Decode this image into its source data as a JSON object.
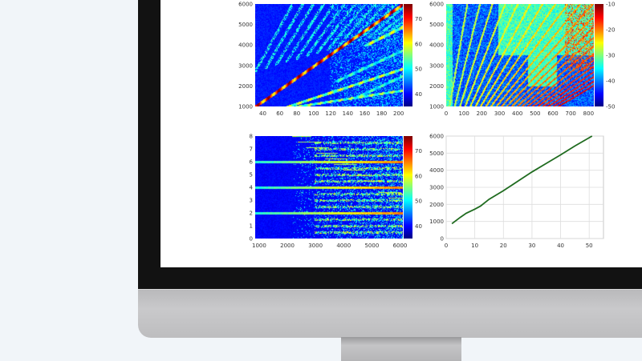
{
  "colors": {
    "background": "#f1f5f9",
    "bezel": "#121212",
    "screen": "#ffffff",
    "line": "#1f6b1f",
    "colormap": "jet"
  },
  "chart_data": [
    {
      "type": "heatmap",
      "xlim": [
        31,
        205
      ],
      "ylim": [
        1000,
        6000
      ],
      "xticks": [
        40,
        60,
        80,
        100,
        120,
        140,
        160,
        180,
        200
      ],
      "yticks": [
        1000,
        2000,
        3000,
        4000,
        5000,
        6000
      ],
      "colorbar": {
        "range": [
          35,
          76
        ],
        "ticks": [
          40,
          50,
          60,
          70
        ]
      }
    },
    {
      "type": "heatmap",
      "xlim": [
        0,
        830
      ],
      "ylim": [
        1000,
        6000
      ],
      "xticks": [
        0,
        100,
        200,
        300,
        400,
        500,
        600,
        700,
        800
      ],
      "yticks": [
        1000,
        2000,
        3000,
        4000,
        5000,
        6000
      ],
      "colorbar": {
        "range": [
          -50,
          -10
        ],
        "ticks": [
          -10,
          -20,
          -30,
          -40,
          -50
        ]
      }
    },
    {
      "type": "heatmap",
      "xlim": [
        860,
        6100
      ],
      "ylim": [
        0,
        8
      ],
      "xticks": [
        1000,
        2000,
        3000,
        4000,
        5000,
        6000
      ],
      "yticks": [
        0,
        1,
        2,
        3,
        4,
        5,
        6,
        7,
        8
      ],
      "colorbar": {
        "range": [
          35,
          76
        ],
        "ticks": [
          40,
          50,
          60,
          70
        ]
      }
    },
    {
      "type": "line",
      "xlim": [
        0,
        55
      ],
      "ylim": [
        0,
        6000
      ],
      "grid": true,
      "xticks": [
        0,
        10,
        20,
        30,
        40,
        50
      ],
      "yticks": [
        0,
        1000,
        2000,
        3000,
        4000,
        5000,
        6000
      ],
      "series": [
        {
          "x": [
            2,
            5,
            7,
            10,
            12,
            15,
            20,
            25,
            30,
            35,
            40,
            45,
            51
          ],
          "y": [
            870,
            1250,
            1480,
            1720,
            1900,
            2300,
            2800,
            3350,
            3900,
            4400,
            4900,
            5420,
            6000
          ]
        }
      ]
    }
  ]
}
